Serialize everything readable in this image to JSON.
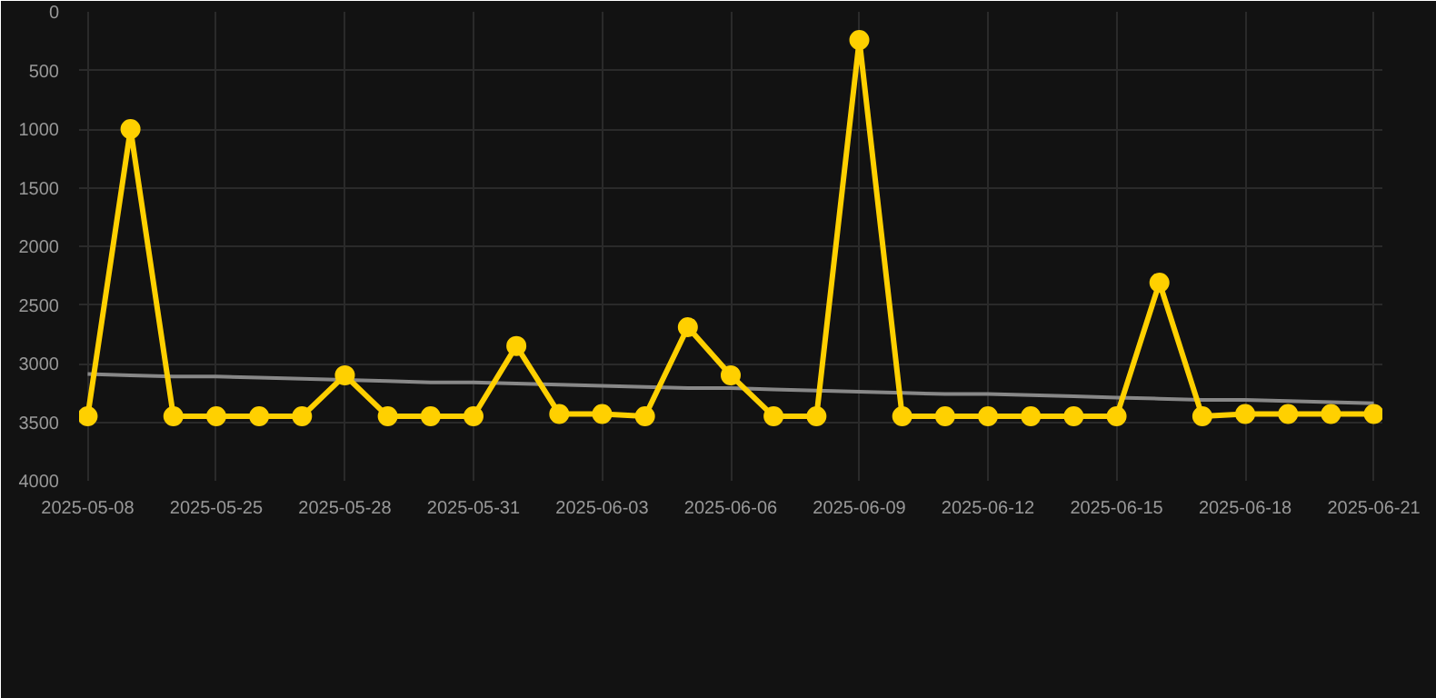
{
  "chart_data": {
    "type": "line",
    "categories": [
      "2025-05-08",
      null,
      null,
      "2025-05-25",
      null,
      null,
      "2025-05-28",
      null,
      null,
      "2025-05-31",
      null,
      null,
      "2025-06-03",
      null,
      null,
      "2025-06-06",
      null,
      null,
      "2025-06-09",
      null,
      null,
      "2025-06-12",
      null,
      null,
      "2025-06-15",
      null,
      null,
      "2025-06-18",
      null,
      null,
      "2025-06-21"
    ],
    "series": [
      {
        "color": "#ffd000",
        "marker": "circle",
        "values": [
          3450,
          1000,
          3450,
          3450,
          3450,
          3450,
          3100,
          3450,
          3450,
          3450,
          2850,
          3430,
          3430,
          3450,
          2690,
          3100,
          3450,
          3450,
          240,
          3450,
          3450,
          3450,
          3450,
          3450,
          3450,
          2310,
          3450,
          3430,
          3430,
          3430,
          3430
        ]
      },
      {
        "color": "#888888",
        "marker": "none",
        "values": [
          3090,
          3100,
          3110,
          3110,
          3120,
          3130,
          3140,
          3150,
          3160,
          3160,
          3170,
          3180,
          3190,
          3200,
          3210,
          3210,
          3220,
          3230,
          3240,
          3250,
          3260,
          3260,
          3270,
          3280,
          3290,
          3300,
          3310,
          3310,
          3320,
          3330,
          3340
        ]
      }
    ],
    "ylim": [
      4000,
      0
    ],
    "yticks": [
      0,
      500,
      1000,
      1500,
      2000,
      2500,
      3000,
      3500,
      4000
    ],
    "grid": true
  }
}
